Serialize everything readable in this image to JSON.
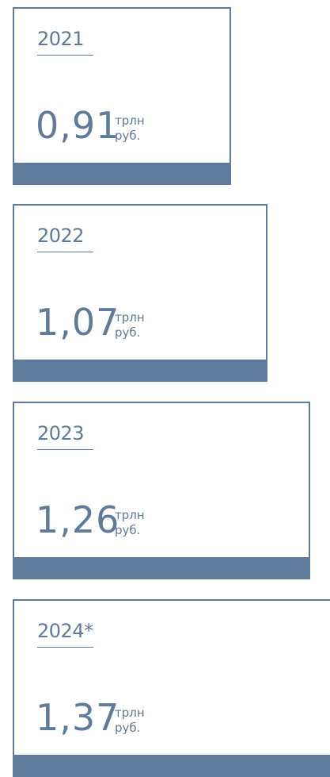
{
  "cards": [
    {
      "year": "2021",
      "value": "0,91",
      "unit": [
        "трлн",
        "руб."
      ]
    },
    {
      "year": "2022",
      "value": "1,07",
      "unit": [
        "трлн",
        "руб."
      ]
    },
    {
      "year": "2023",
      "value": "1,26",
      "unit": [
        "трлн",
        "руб."
      ]
    },
    {
      "year": "2024*",
      "value": "1,37",
      "unit": [
        "трлн",
        "руб."
      ]
    }
  ]
}
